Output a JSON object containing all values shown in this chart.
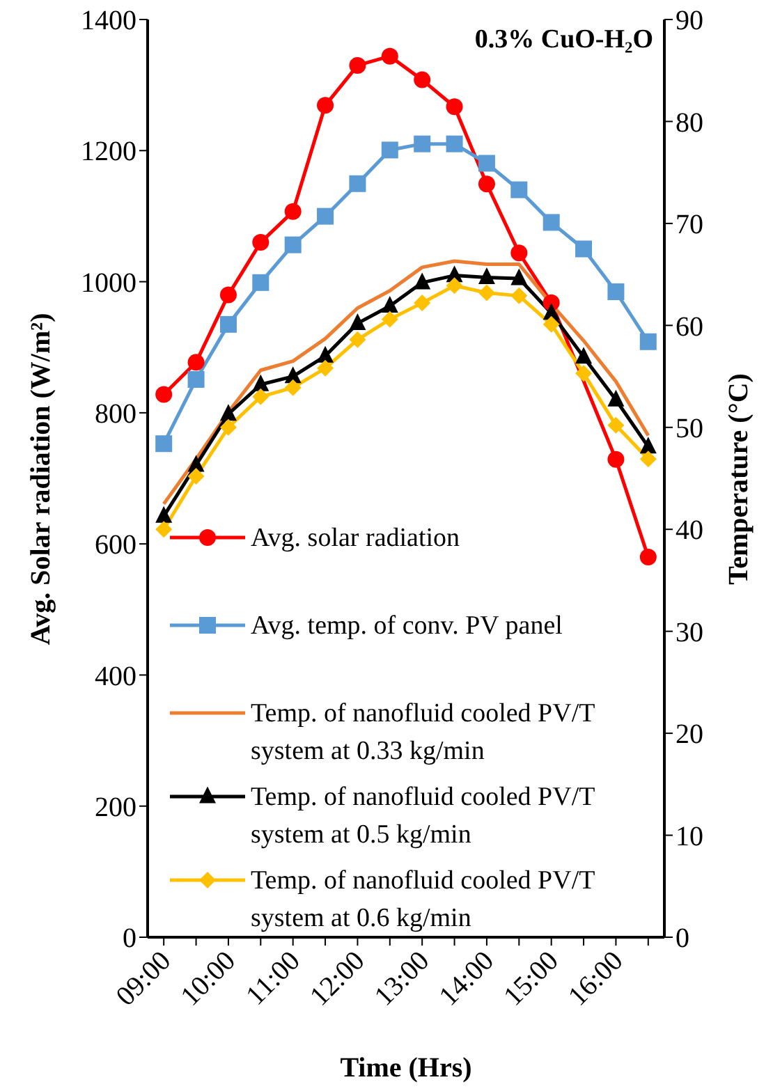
{
  "chart_data": {
    "type": "line",
    "title": "0.3% CuO-H₂O",
    "xlabel": "Time (Hrs)",
    "ylabel": "Avg. Solar radiation (W/m²)",
    "y2label": "Temperature (°C)",
    "categories": [
      "09:00",
      null,
      "10:00",
      null,
      "11:00",
      null,
      "12:00",
      null,
      "13:00",
      null,
      "14:00",
      null,
      "15:00",
      null,
      "16:00",
      null
    ],
    "series": [
      {
        "name": "Avg. solar radiation",
        "color": "#ff0000",
        "marker": "circle",
        "values": [
          828,
          877,
          980,
          1060,
          1107,
          1269,
          1330,
          1344,
          1308,
          1267,
          1149,
          1044,
          968,
          null,
          729,
          580
        ]
      },
      {
        "name": "Avg. temp. of conv. PV panel",
        "color": "#5b9bd5",
        "marker": "square",
        "axis": "y2",
        "values": [
          48.4,
          54.7,
          60.1,
          64.2,
          67.9,
          70.7,
          73.9,
          77.2,
          77.8,
          77.8,
          75.9,
          73.3,
          70.1,
          67.5,
          63.3,
          58.4
        ]
      },
      {
        "name": "Temp. of nanofluid cooled PV/T system at 0.33 kg/min",
        "color": "#ed7d31",
        "marker": "none",
        "axis": "y2",
        "values": [
          42.5,
          46.9,
          51.5,
          55.6,
          56.5,
          58.7,
          61.7,
          63.4,
          65.7,
          66.3,
          66.0,
          66.0,
          62.1,
          58.5,
          54.5,
          49.2
        ]
      },
      {
        "name": "Temp. of nanofluid cooled PV/T system at 0.5 kg/min",
        "color": "#000000",
        "marker": "triangle",
        "axis": "y2",
        "values": [
          41.3,
          46.3,
          51.3,
          54.2,
          55.0,
          57.0,
          60.2,
          61.9,
          64.2,
          64.9,
          64.7,
          64.6,
          61.2,
          56.9,
          52.7,
          48.1
        ]
      },
      {
        "name": "Temp. of nanofluid cooled PV/T system at 0.6 kg/min",
        "color": "#ffc000",
        "marker": "diamond",
        "axis": "y2",
        "values": [
          40.0,
          45.2,
          50.0,
          53.0,
          53.9,
          55.8,
          58.6,
          60.6,
          62.2,
          63.9,
          63.2,
          62.9,
          60.1,
          55.3,
          50.2,
          46.9
        ]
      }
    ],
    "ylim": [
      0,
      1400
    ],
    "yticks": [
      0,
      200,
      400,
      600,
      800,
      1000,
      1200,
      1400
    ],
    "y2lim": [
      0,
      90
    ],
    "y2ticks": [
      0,
      10,
      20,
      30,
      40,
      50,
      60,
      70,
      80,
      90
    ],
    "legend": "bottom left",
    "line_style": "solid"
  }
}
